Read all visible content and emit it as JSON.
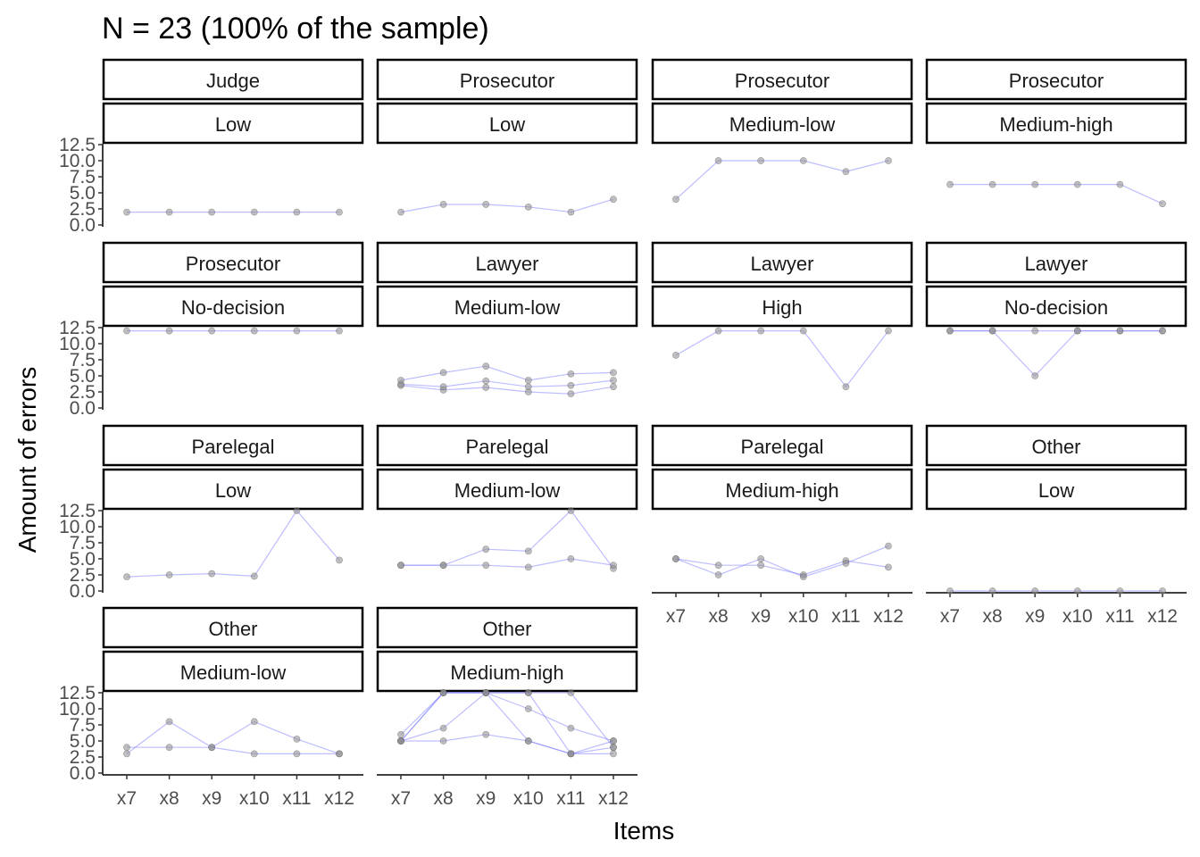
{
  "chart_data": {
    "type": "line",
    "title": "N = 23 (100% of the sample)",
    "xlabel": "Items",
    "ylabel": "Amount of errors",
    "categories": [
      "x7",
      "x8",
      "x9",
      "x10",
      "x11",
      "x12"
    ],
    "yticks": [
      "0.0",
      "2.5",
      "5.0",
      "7.5",
      "10.0",
      "12.5"
    ],
    "ylim": [
      0,
      12.5
    ],
    "grid": false,
    "line_color": "#7b7bff",
    "point_color": "#8c8c8c",
    "panels": [
      {
        "strip_top": "Judge",
        "strip_bottom": "Low",
        "series": [
          [
            2,
            2,
            2,
            2,
            2,
            2
          ]
        ]
      },
      {
        "strip_top": "Prosecutor",
        "strip_bottom": "Low",
        "series": [
          [
            2,
            3.2,
            3.2,
            2.8,
            2,
            4
          ]
        ]
      },
      {
        "strip_top": "Prosecutor",
        "strip_bottom": "Medium-low",
        "series": [
          [
            4,
            10,
            10,
            10,
            8.3,
            10
          ]
        ]
      },
      {
        "strip_top": "Prosecutor",
        "strip_bottom": "Medium-high",
        "series": [
          [
            6.3,
            6.3,
            6.3,
            6.3,
            6.3,
            3.3
          ]
        ]
      },
      {
        "strip_top": "Prosecutor",
        "strip_bottom": "No-decision",
        "series": [
          [
            12,
            12,
            12,
            12,
            12,
            12
          ]
        ]
      },
      {
        "strip_top": "Lawyer",
        "strip_bottom": "Medium-low",
        "series": [
          [
            3.5,
            2.8,
            3.2,
            2.5,
            2.2,
            3.3
          ],
          [
            4.3,
            5.5,
            6.5,
            4.3,
            5.3,
            5.5
          ],
          [
            3.7,
            3.3,
            4.2,
            3.3,
            3.5,
            4.3
          ]
        ]
      },
      {
        "strip_top": "Lawyer",
        "strip_bottom": "High",
        "series": [
          [
            8.2,
            12,
            12,
            12,
            3.3,
            12
          ]
        ]
      },
      {
        "strip_top": "Lawyer",
        "strip_bottom": "No-decision",
        "series": [
          [
            12,
            12,
            12,
            12,
            12,
            12
          ],
          [
            12,
            12,
            5,
            12,
            12,
            12
          ]
        ]
      },
      {
        "strip_top": "Parelegal",
        "strip_bottom": "Low",
        "series": [
          [
            2.2,
            2.5,
            2.7,
            2.3,
            12.5,
            4.8
          ]
        ]
      },
      {
        "strip_top": "Parelegal",
        "strip_bottom": "Medium-low",
        "series": [
          [
            4,
            4,
            6.5,
            6.2,
            12.5,
            3.5
          ],
          [
            4,
            4,
            4,
            3.7,
            5,
            4
          ]
        ]
      },
      {
        "strip_top": "Parelegal",
        "strip_bottom": "Medium-high",
        "series": [
          [
            5,
            4,
            4,
            2.5,
            4.7,
            3.7
          ],
          [
            5,
            2.5,
            5,
            2.2,
            4.3,
            7
          ]
        ]
      },
      {
        "strip_top": "Other",
        "strip_bottom": "Low",
        "series": [
          [
            0,
            0,
            0,
            0,
            0,
            0
          ]
        ]
      },
      {
        "strip_top": "Other",
        "strip_bottom": "Medium-low",
        "series": [
          [
            4,
            4,
            4,
            8,
            5.3,
            3
          ],
          [
            3,
            8,
            4,
            3,
            3,
            3
          ]
        ]
      },
      {
        "strip_top": "Other",
        "strip_bottom": "Medium-high",
        "series": [
          [
            5,
            12.5,
            12.5,
            12.5,
            12.5,
            4
          ],
          [
            6,
            12.5,
            12.5,
            10,
            7,
            5
          ],
          [
            5,
            5,
            6,
            5,
            3,
            4
          ],
          [
            5,
            7,
            12.5,
            5,
            3,
            5
          ],
          [
            5,
            12.5,
            12.5,
            12.5,
            3,
            3
          ]
        ]
      }
    ]
  }
}
